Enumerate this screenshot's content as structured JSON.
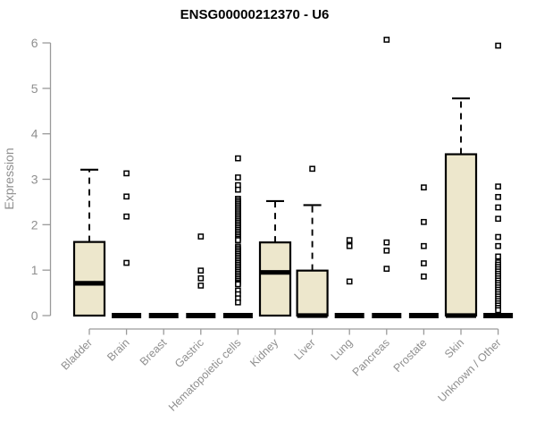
{
  "chart_data": {
    "type": "boxplot",
    "title": "ENSG00000212370 - U6",
    "ylabel": "Expression",
    "xlabel": "",
    "ylim": [
      0,
      6
    ],
    "yticks": [
      0,
      1,
      2,
      3,
      4,
      5,
      6
    ],
    "grid": false,
    "legend": "none",
    "x_label_rotation_deg": 45,
    "colors": {
      "box_fill": "#ede7cc",
      "box_stroke": "#000000",
      "median": "#000000",
      "whisker": "#000000",
      "outlier_stroke": "#000000",
      "outlier_fill": "#ffffff",
      "axis_line": "#9a9a9a",
      "tick_label": "#8f8f8f",
      "title": "#000000",
      "background": "#ffffff"
    },
    "categories": [
      {
        "label": "Bladder",
        "q1": 0,
        "median": 0.71,
        "q3": 1.62,
        "whisker_low": 0,
        "whisker_high": 3.21,
        "outliers": []
      },
      {
        "label": "Brain",
        "q1": 0,
        "median": 0,
        "q3": 0,
        "whisker_low": 0,
        "whisker_high": 0,
        "outliers": [
          3.13,
          2.62,
          2.18,
          1.16
        ]
      },
      {
        "label": "Breast",
        "q1": 0,
        "median": 0,
        "q3": 0,
        "whisker_low": 0,
        "whisker_high": 0,
        "outliers": []
      },
      {
        "label": "Gastric",
        "q1": 0,
        "median": 0,
        "q3": 0,
        "whisker_low": 0,
        "whisker_high": 0,
        "outliers": [
          1.74,
          0.99,
          0.82,
          0.66
        ]
      },
      {
        "label": "Hematopoietic cells",
        "q1": 0,
        "median": 0,
        "q3": 0,
        "whisker_low": 0,
        "whisker_high": 0,
        "outliers": [
          3.46,
          3.04,
          2.87,
          2.77,
          2.57,
          2.53,
          2.49,
          2.45,
          2.41,
          2.37,
          2.33,
          2.29,
          2.25,
          2.21,
          2.17,
          2.13,
          2.09,
          2.05,
          2.01,
          1.97,
          1.93,
          1.89,
          1.85,
          1.81,
          1.77,
          1.73,
          1.69,
          1.66,
          1.52,
          1.48,
          1.44,
          1.4,
          1.36,
          1.32,
          1.28,
          1.24,
          1.2,
          1.16,
          1.12,
          1.08,
          1.04,
          1.0,
          0.96,
          0.92,
          0.88,
          0.84,
          0.8,
          0.76,
          0.72,
          0.69,
          0.55,
          0.47,
          0.38,
          0.29
        ]
      },
      {
        "label": "Kidney",
        "q1": 0,
        "median": 0.95,
        "q3": 1.61,
        "whisker_low": 0,
        "whisker_high": 2.52,
        "outliers": []
      },
      {
        "label": "Liver",
        "q1": 0,
        "median": 0,
        "q3": 0.99,
        "whisker_low": 0,
        "whisker_high": 2.43,
        "outliers": [
          3.23
        ]
      },
      {
        "label": "Lung",
        "q1": 0,
        "median": 0,
        "q3": 0,
        "whisker_low": 0,
        "whisker_high": 0,
        "outliers": [
          1.66,
          1.53,
          0.75
        ]
      },
      {
        "label": "Pancreas",
        "q1": 0,
        "median": 0,
        "q3": 0,
        "whisker_low": 0,
        "whisker_high": 0,
        "outliers": [
          6.07,
          1.61,
          1.43,
          1.03
        ]
      },
      {
        "label": "Prostate",
        "q1": 0,
        "median": 0,
        "q3": 0,
        "whisker_low": 0,
        "whisker_high": 0,
        "outliers": [
          2.82,
          2.06,
          1.53,
          1.15,
          0.86
        ]
      },
      {
        "label": "Skin",
        "q1": 0,
        "median": 0,
        "q3": 3.55,
        "whisker_low": 0,
        "whisker_high": 4.78,
        "outliers": []
      },
      {
        "label": "Unknown / Other",
        "q1": 0,
        "median": 0,
        "q3": 0,
        "whisker_low": 0,
        "whisker_high": 0,
        "outliers": [
          5.94,
          2.84,
          2.61,
          2.38,
          2.13,
          1.73,
          1.53,
          1.3,
          1.17,
          1.12,
          1.07,
          1.02,
          0.97,
          0.92,
          0.87,
          0.82,
          0.77,
          0.72,
          0.67,
          0.62,
          0.57,
          0.52,
          0.47,
          0.42,
          0.37,
          0.32,
          0.27,
          0.22,
          0.17,
          0.12
        ]
      }
    ]
  }
}
